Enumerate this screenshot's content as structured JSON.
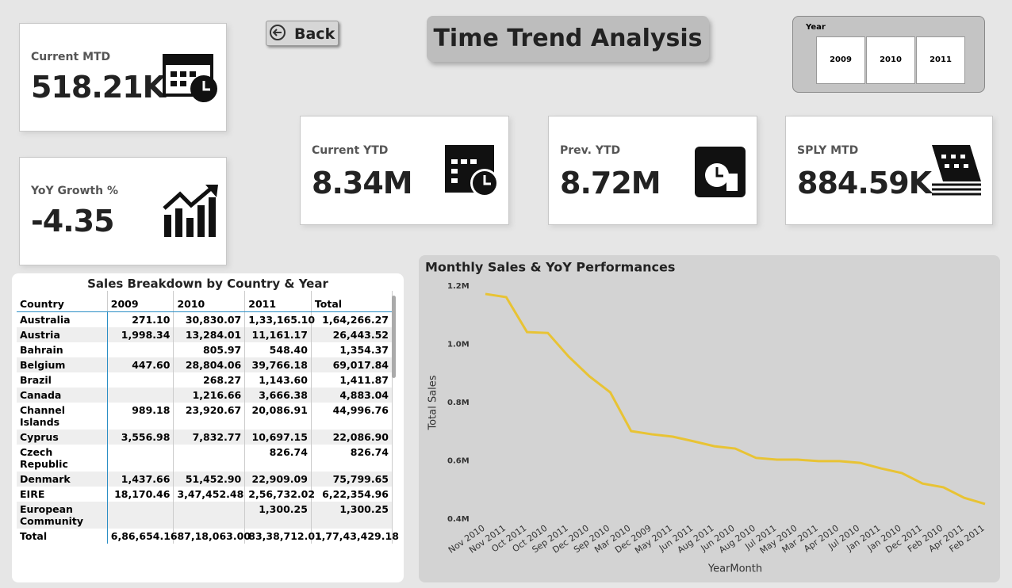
{
  "header": {
    "back": "Back",
    "title": "Time Trend Analysis"
  },
  "slicer": {
    "label": "Year",
    "options": [
      "2009",
      "2010",
      "2011"
    ]
  },
  "cards": [
    {
      "label": "Current MTD",
      "value": "518.21K"
    },
    {
      "label": "YoY Growth %",
      "value": "-4.35"
    },
    {
      "label": "Current YTD",
      "value": "8.34M"
    },
    {
      "label": "Prev. YTD",
      "value": "8.72M"
    },
    {
      "label": "SPLY MTD",
      "value": "884.59K"
    }
  ],
  "table": {
    "title": "Sales Breakdown by Country & Year",
    "columns": [
      "Country",
      "2009",
      "2010",
      "2011",
      "Total"
    ],
    "rows": [
      [
        "Australia",
        "271.10",
        "30,830.07",
        "1,33,165.10",
        "1,64,266.27"
      ],
      [
        "Austria",
        "1,998.34",
        "13,284.01",
        "11,161.17",
        "26,443.52"
      ],
      [
        "Bahrain",
        null,
        "805.97",
        "548.40",
        "1,354.37"
      ],
      [
        "Belgium",
        "447.60",
        "28,804.06",
        "39,766.18",
        "69,017.84"
      ],
      [
        "Brazil",
        null,
        "268.27",
        "1,143.60",
        "1,411.87"
      ],
      [
        "Canada",
        null,
        "1,216.66",
        "3,666.38",
        "4,883.04"
      ],
      [
        "Channel Islands",
        "989.18",
        "23,920.67",
        "20,086.91",
        "44,996.76"
      ],
      [
        "Cyprus",
        "3,556.98",
        "7,832.77",
        "10,697.15",
        "22,086.90"
      ],
      [
        "Czech Republic",
        null,
        null,
        "826.74",
        "826.74"
      ],
      [
        "Denmark",
        "1,437.66",
        "51,452.90",
        "22,909.09",
        "75,799.65"
      ],
      [
        "EIRE",
        "18,170.46",
        "3,47,452.48",
        "2,56,732.02",
        "6,22,354.96"
      ],
      [
        "European Community",
        null,
        null,
        "1,300.25",
        "1,300.25"
      ]
    ],
    "total": [
      "Total",
      "6,86,654.16",
      "87,18,063.00",
      "83,38,712.01",
      "1,77,43,429.18"
    ]
  },
  "chart_data": {
    "type": "line",
    "title": "Monthly Sales & YoY Performances",
    "x_label": "YearMonth",
    "y_label": "Total Sales",
    "categories": [
      "Nov 2010",
      "Nov 2011",
      "Oct 2011",
      "Oct 2010",
      "Sep 2011",
      "Dec 2010",
      "Sep 2010",
      "Mar 2010",
      "Dec 2009",
      "May 2011",
      "Jun 2011",
      "Aug 2011",
      "Jun 2010",
      "Aug 2010",
      "Jul 2011",
      "May 2010",
      "Mar 2011",
      "Apr 2010",
      "Jul 2010",
      "Jan 2011",
      "Jan 2010",
      "Dec 2011",
      "Feb 2010",
      "Apr 2011",
      "Feb 2011"
    ],
    "values": [
      1173000,
      1162000,
      1042000,
      1039000,
      958000,
      890000,
      835000,
      702000,
      691000,
      683000,
      667000,
      650000,
      642000,
      610000,
      604000,
      604000,
      599000,
      599000,
      593000,
      574000,
      558000,
      522000,
      509000,
      473000,
      452000
    ],
    "color": "#e8c334",
    "ylim": [
      400000,
      1200000
    ],
    "yticks": [
      {
        "value": 400000,
        "label": "0.4M"
      },
      {
        "value": 600000,
        "label": "0.6M"
      },
      {
        "value": 800000,
        "label": "0.8M"
      },
      {
        "value": 1000000,
        "label": "1.0M"
      },
      {
        "value": 1200000,
        "label": "1.2M"
      }
    ]
  }
}
